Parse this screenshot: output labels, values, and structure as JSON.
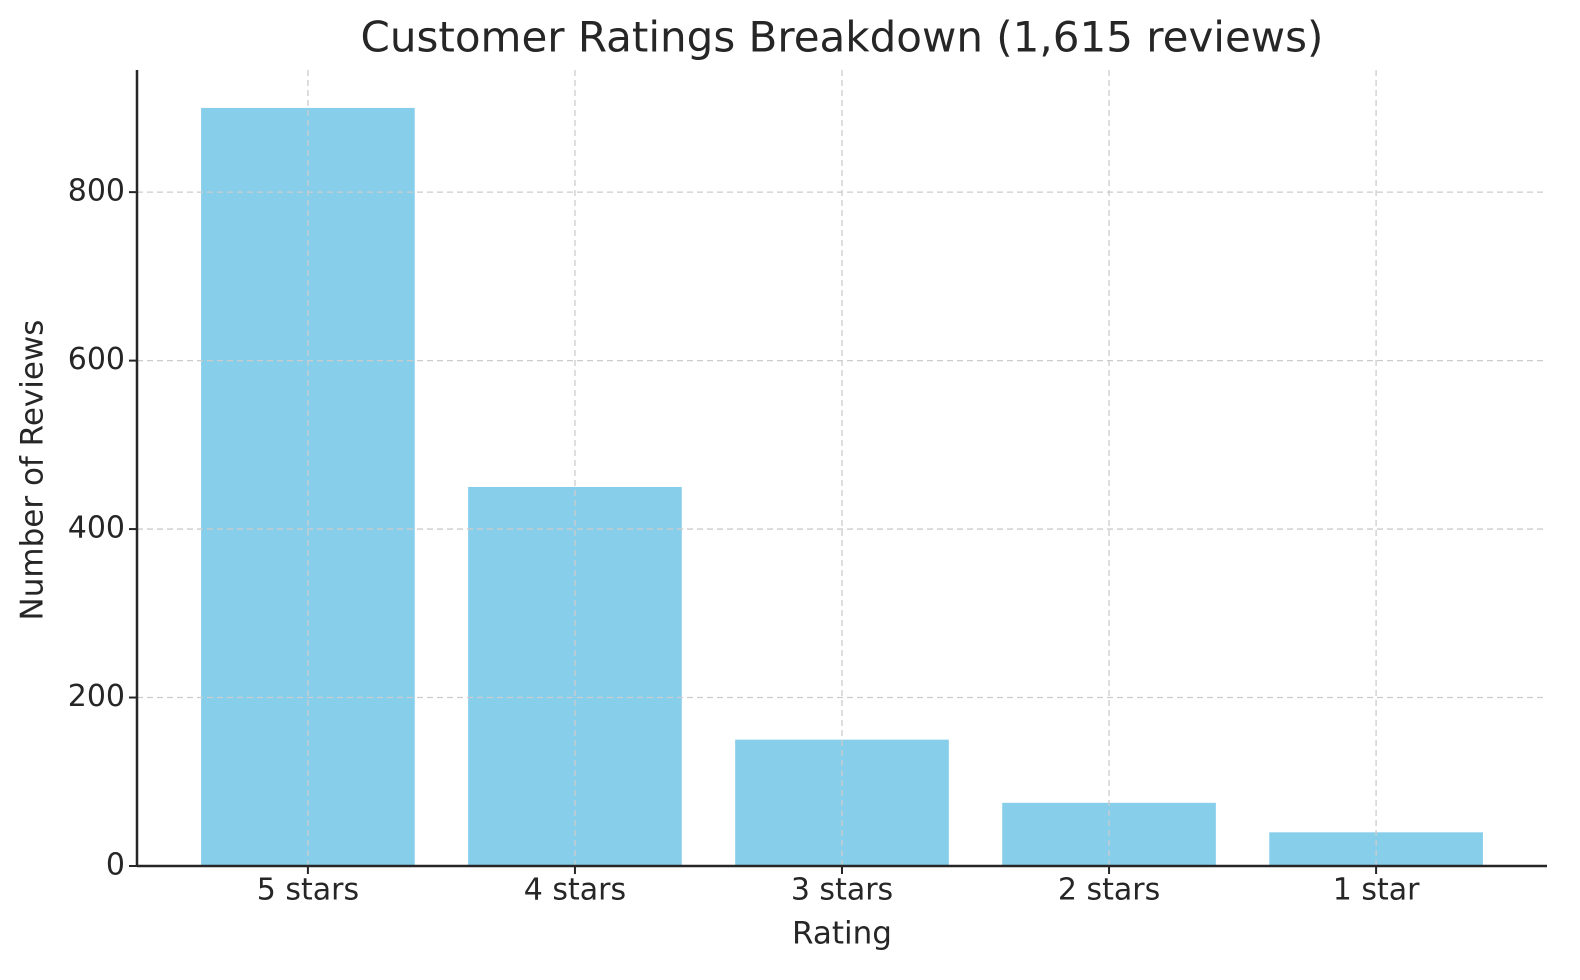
{
  "chart_data": {
    "type": "bar",
    "title": "Customer Ratings Breakdown (1,615 reviews)",
    "x_label": "Rating",
    "y_label": "Number of Reviews",
    "categories": [
      "5 stars",
      "4 stars",
      "3 stars",
      "2 stars",
      "1 star"
    ],
    "values": [
      900,
      450,
      150,
      75,
      40
    ],
    "color": "#87ceeb",
    "ylim": [
      0,
      945
    ],
    "yticks": [
      0,
      200,
      400,
      600,
      800
    ],
    "grid": true
  }
}
